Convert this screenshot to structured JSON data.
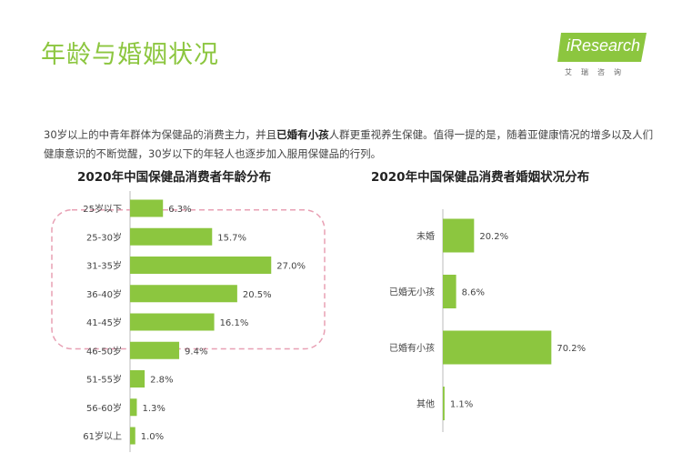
{
  "page_title": "年龄与婚姻状况",
  "logo": {
    "brand": "iResearch",
    "subtitle": "艾瑞咨询"
  },
  "description": {
    "part1": "30岁以上的中青年群体为保健品的消费主力，并且",
    "highlight": "已婚有小孩",
    "part2": "人群更重视养生保健。值得一提的是，随着亚健康情况的增多以及人们健康意识的不断觉醒，30岁以下的年轻人也逐步加入服用保健品的行列。"
  },
  "colors": {
    "accent": "#8cc63f",
    "bar": "#8cc63f",
    "highlight_box": "#e8a0b4"
  },
  "chart_data": [
    {
      "type": "bar",
      "orientation": "horizontal",
      "title": "2020年中国保健品消费者年龄分布",
      "categories": [
        "25岁以下",
        "25-30岁",
        "31-35岁",
        "36-40岁",
        "41-45岁",
        "46-50岁",
        "51-55岁",
        "56-60岁",
        "61岁以上"
      ],
      "values": [
        6.3,
        15.7,
        27.0,
        20.5,
        16.1,
        9.4,
        2.8,
        1.3,
        1.0
      ],
      "labels": [
        "6.3%",
        "15.7%",
        "27.0%",
        "20.5%",
        "16.1%",
        "9.4%",
        "2.8%",
        "1.3%",
        "1.0%"
      ],
      "unit": "%",
      "highlighted_categories": [
        "25-30岁",
        "31-35岁",
        "36-40岁",
        "41-45岁"
      ]
    },
    {
      "type": "bar",
      "orientation": "horizontal",
      "title": "2020年中国保健品消费者婚姻状况分布",
      "categories": [
        "未婚",
        "已婚无小孩",
        "已婚有小孩",
        "其他"
      ],
      "values": [
        20.2,
        8.6,
        70.2,
        1.1
      ],
      "labels": [
        "20.2%",
        "8.6%",
        "70.2%",
        "1.1%"
      ],
      "unit": "%"
    }
  ]
}
